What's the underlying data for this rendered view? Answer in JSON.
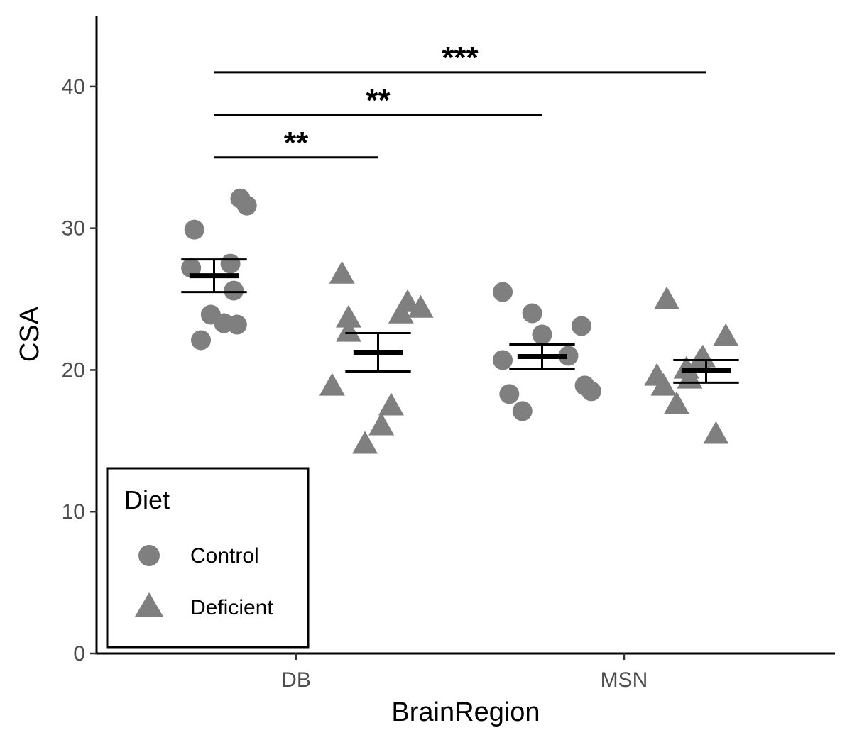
{
  "chart_data": {
    "type": "scatter",
    "xlabel": "BrainRegion",
    "ylabel": "CSA",
    "categories": [
      "DB",
      "MSN"
    ],
    "ylim": [
      0,
      45
    ],
    "yticks": [
      0,
      10,
      20,
      30,
      40
    ],
    "grid": false,
    "point_color": "#7f7f7f",
    "legend": {
      "title": "Diet",
      "placement": "bottom-left",
      "entries": [
        {
          "label": "Control",
          "shape": "circle"
        },
        {
          "label": "Deficient",
          "shape": "triangle"
        }
      ]
    },
    "series": [
      {
        "category": "DB",
        "diet": "Control",
        "shape": "circle",
        "jitter": [
          -0.17,
          -0.31,
          -0.32,
          -0.29,
          -0.26,
          -0.22,
          -0.19,
          -0.2,
          -0.18,
          -0.15
        ],
        "values": [
          32.1,
          29.9,
          27.2,
          22.1,
          23.9,
          23.3,
          25.6,
          27.5,
          23.2,
          31.6
        ],
        "mean": 26.65,
        "error": [
          25.5,
          27.8
        ]
      },
      {
        "category": "DB",
        "diet": "Deficient",
        "shape": "triangle",
        "jitter": [
          0.14,
          0.16,
          0.16,
          0.11,
          0.21,
          0.26,
          0.29,
          0.32,
          0.34,
          0.38
        ],
        "values": [
          26.7,
          23.6,
          22.6,
          18.8,
          14.7,
          16.0,
          17.4,
          23.9,
          24.7,
          24.3
        ],
        "mean": 21.25,
        "error": [
          19.9,
          22.6
        ]
      },
      {
        "category": "MSN",
        "diet": "Control",
        "shape": "circle",
        "jitter": [
          -0.37,
          -0.37,
          -0.35,
          -0.31,
          -0.28,
          -0.25,
          -0.17,
          -0.13,
          -0.12,
          -0.1
        ],
        "values": [
          25.5,
          20.7,
          18.3,
          17.1,
          24.0,
          22.5,
          21.0,
          23.1,
          18.9,
          18.5
        ],
        "mean": 20.95,
        "error": [
          20.1,
          21.8
        ]
      },
      {
        "category": "MSN",
        "diet": "Deficient",
        "shape": "triangle",
        "jitter": [
          0.1,
          0.12,
          0.13,
          0.16,
          0.19,
          0.2,
          0.23,
          0.24,
          0.28,
          0.31
        ],
        "values": [
          19.5,
          18.8,
          24.9,
          17.5,
          20.0,
          19.3,
          20.5,
          20.8,
          15.4,
          22.3
        ],
        "mean": 19.95,
        "error": [
          19.1,
          20.7
        ]
      }
    ],
    "annotations": [
      {
        "label": "**",
        "from": -0.25,
        "to": 0.25,
        "y": 35.0
      },
      {
        "label": "**",
        "from": -0.25,
        "to": 0.75,
        "y": 38.0
      },
      {
        "label": "***",
        "from": -0.25,
        "to": 1.25,
        "y": 41.0
      }
    ]
  }
}
